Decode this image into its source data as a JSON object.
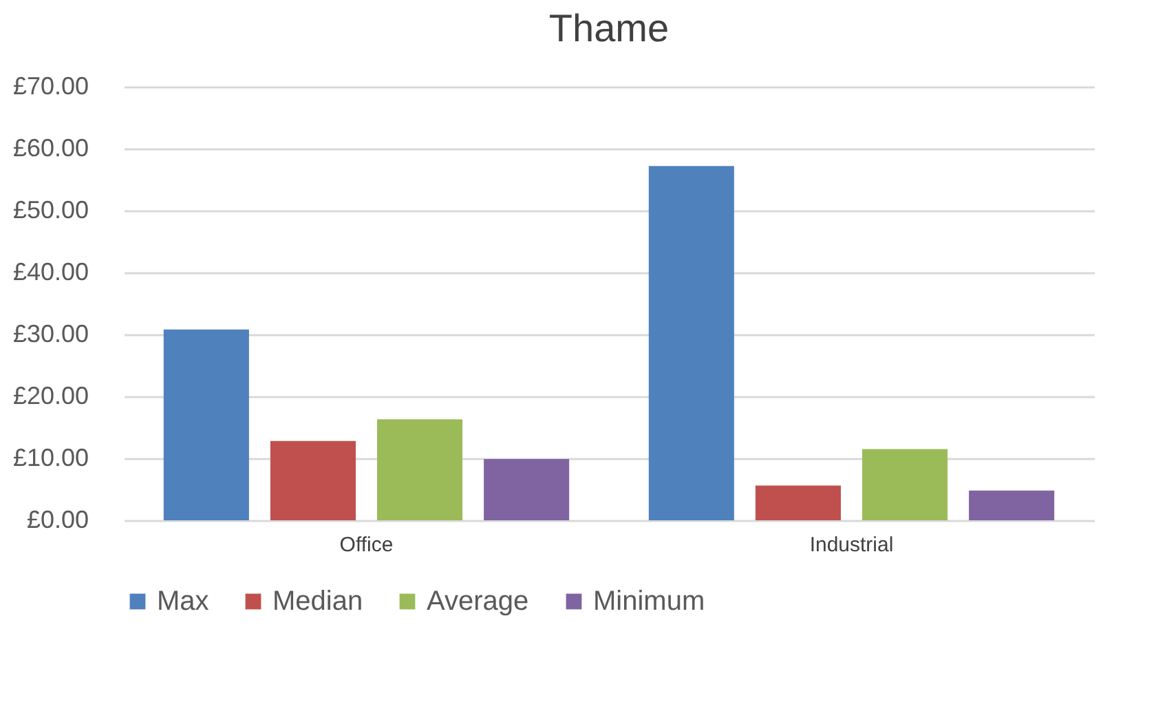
{
  "chart_data": {
    "type": "bar",
    "title": "Thame",
    "categories": [
      "Office",
      "Industrial"
    ],
    "series": [
      {
        "name": "Max",
        "color": "#4f81bd",
        "values": [
          30.8,
          57.2
        ]
      },
      {
        "name": "Median",
        "color": "#c0504d",
        "values": [
          12.8,
          5.6
        ]
      },
      {
        "name": "Average",
        "color": "#9bbb59",
        "values": [
          16.3,
          11.5
        ]
      },
      {
        "name": "Minimum",
        "color": "#8064a2",
        "values": [
          9.9,
          4.8
        ]
      }
    ],
    "ylim": [
      0,
      70
    ],
    "yticks": [
      {
        "value": 0,
        "label": "£0.00"
      },
      {
        "value": 10,
        "label": "£10.00"
      },
      {
        "value": 20,
        "label": "£20.00"
      },
      {
        "value": 30,
        "label": "£30.00"
      },
      {
        "value": 40,
        "label": "£40.00"
      },
      {
        "value": 50,
        "label": "£50.00"
      },
      {
        "value": 60,
        "label": "£60.00"
      },
      {
        "value": 70,
        "label": "£70.00"
      }
    ],
    "grid": "y",
    "legend": "bottom"
  }
}
